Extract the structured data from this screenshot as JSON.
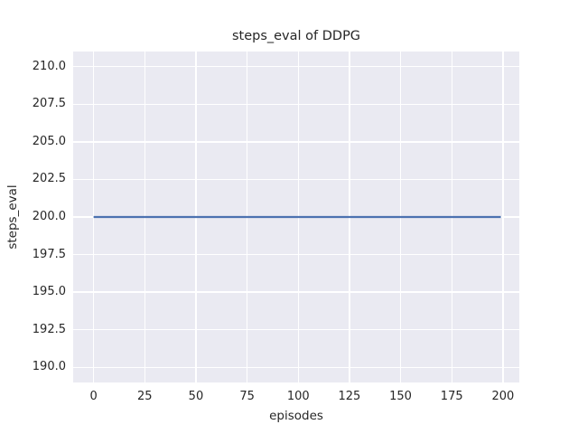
{
  "figure": {
    "background": "#ffffff",
    "text_color": "#262626"
  },
  "chart_data": {
    "type": "line",
    "title": "steps_eval of DDPG",
    "xlabel": "episodes",
    "ylabel": "steps_eval",
    "xlim": [
      -10,
      208
    ],
    "ylim": [
      189,
      211
    ],
    "grid": true,
    "legend": false,
    "plot_background": "#eaeaf2",
    "grid_color": "#ffffff",
    "x_ticks": [
      {
        "label": "0",
        "value": 0
      },
      {
        "label": "25",
        "value": 25
      },
      {
        "label": "50",
        "value": 50
      },
      {
        "label": "75",
        "value": 75
      },
      {
        "label": "100",
        "value": 100
      },
      {
        "label": "125",
        "value": 125
      },
      {
        "label": "150",
        "value": 150
      },
      {
        "label": "175",
        "value": 175
      },
      {
        "label": "200",
        "value": 200
      }
    ],
    "y_ticks": [
      {
        "label": "190.0",
        "value": 190.0
      },
      {
        "label": "192.5",
        "value": 192.5
      },
      {
        "label": "195.0",
        "value": 195.0
      },
      {
        "label": "197.5",
        "value": 197.5
      },
      {
        "label": "200.0",
        "value": 200.0
      },
      {
        "label": "202.5",
        "value": 202.5
      },
      {
        "label": "205.0",
        "value": 205.0
      },
      {
        "label": "207.5",
        "value": 207.5
      },
      {
        "label": "210.0",
        "value": 210.0
      }
    ],
    "series": [
      {
        "name": "DDPG steps_eval",
        "color": "#4c72b0",
        "linewidth": 2.3,
        "x": [
          0,
          199
        ],
        "y": [
          200,
          200
        ]
      }
    ]
  }
}
